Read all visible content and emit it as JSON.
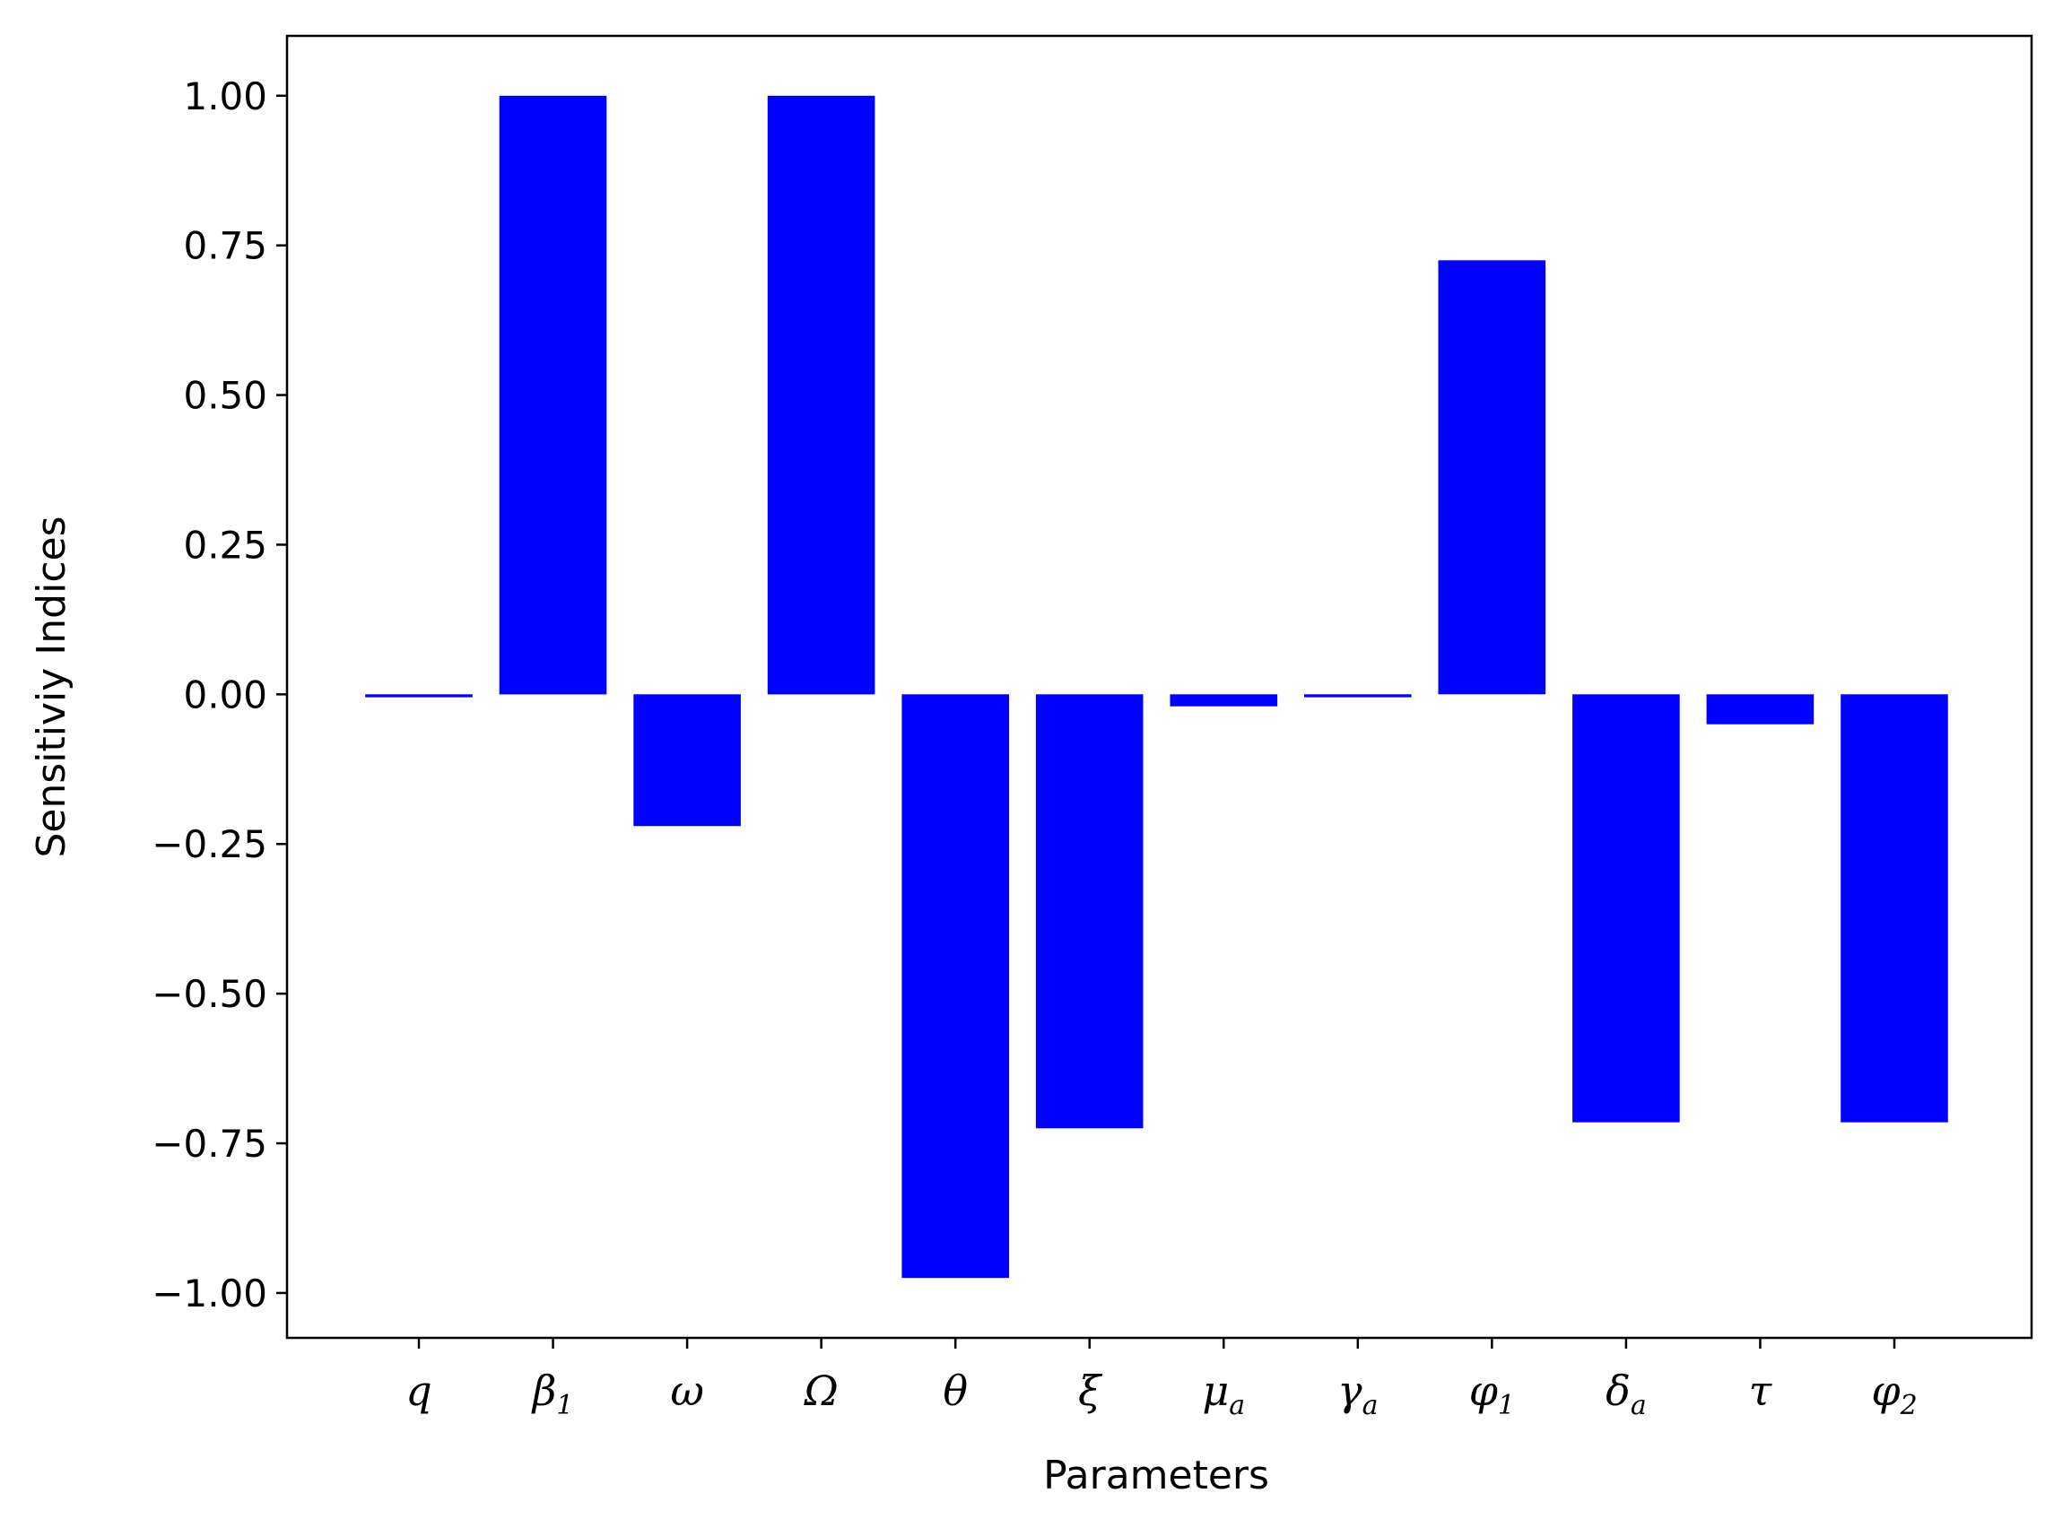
{
  "chart_data": {
    "type": "bar",
    "categories": [
      {
        "base": "q",
        "sub": ""
      },
      {
        "base": "β",
        "sub": "1"
      },
      {
        "base": "ω",
        "sub": ""
      },
      {
        "base": "Ω",
        "sub": ""
      },
      {
        "base": "θ",
        "sub": ""
      },
      {
        "base": "ξ",
        "sub": ""
      },
      {
        "base": "μ",
        "sub": "a"
      },
      {
        "base": "γ",
        "sub": "a"
      },
      {
        "base": "φ",
        "sub": "1"
      },
      {
        "base": "δ",
        "sub": "a"
      },
      {
        "base": "τ",
        "sub": ""
      },
      {
        "base": "φ",
        "sub": "2"
      }
    ],
    "values": [
      -0.005,
      1.0,
      -0.22,
      1.0,
      -0.975,
      -0.725,
      -0.02,
      -0.005,
      0.725,
      -0.715,
      -0.05,
      -0.715
    ],
    "title": "",
    "xlabel": "Parameters",
    "ylabel": "Sensitiviy Indices",
    "ylim": [
      -1.075,
      1.1
    ],
    "yticks": [
      1.0,
      0.75,
      0.5,
      0.25,
      0.0,
      -0.25,
      -0.5,
      -0.75,
      -1.0
    ],
    "ytick_labels": [
      "1.00",
      "0.75",
      "0.50",
      "0.25",
      "0.00",
      "−0.25",
      "−0.50",
      "−0.75",
      "−1.00"
    ],
    "bar_color": "#0000ff",
    "grid": false,
    "legend": "none"
  }
}
